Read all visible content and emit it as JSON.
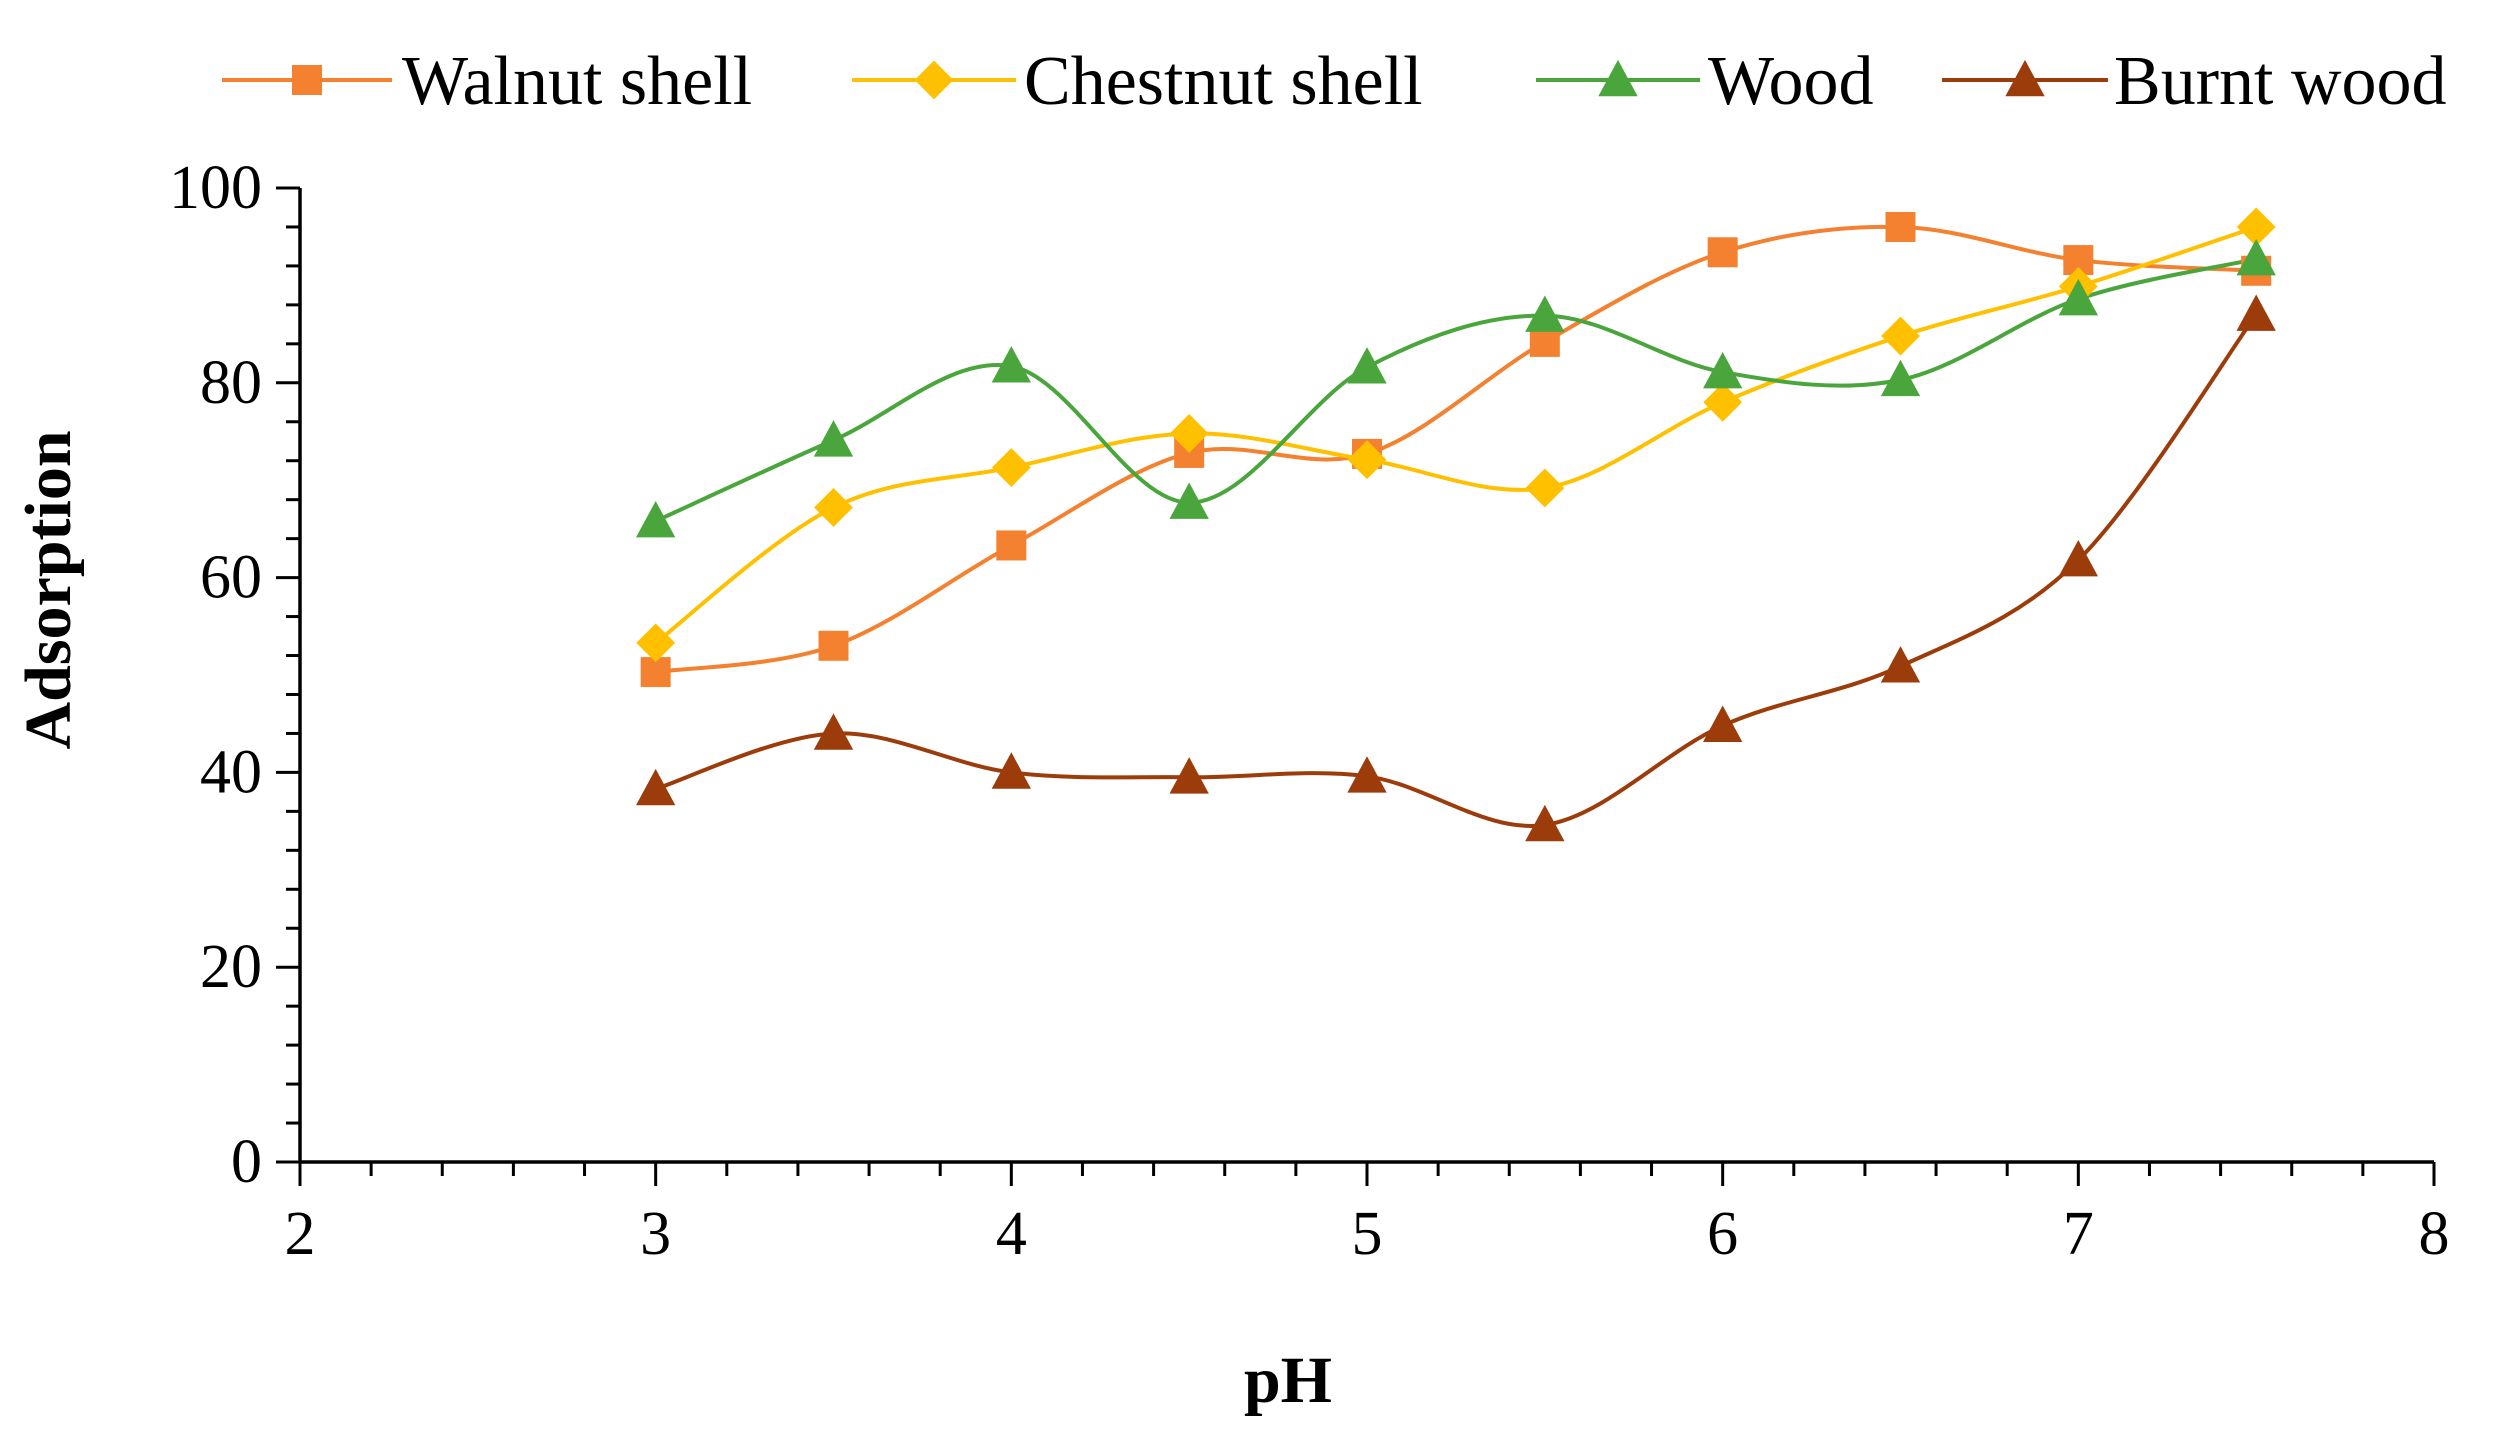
{
  "chart_data": {
    "type": "line",
    "title": "",
    "xlabel": "pH",
    "ylabel": "Adsorption",
    "xlim": [
      2,
      8
    ],
    "ylim": [
      0,
      100
    ],
    "x_ticks": [
      2,
      3,
      4,
      5,
      6,
      7,
      8
    ],
    "y_ticks": [
      0,
      20,
      40,
      60,
      80,
      100
    ],
    "grid": false,
    "legend_position": "top",
    "x": [
      3,
      3.5,
      4,
      4.5,
      5,
      5.5,
      6,
      6.5,
      7,
      7.5
    ],
    "series": [
      {
        "name": "Walnut shell",
        "color": "#f4812f",
        "marker": "square",
        "values": [
          50.3,
          53.0,
          63.3,
          72.8,
          72.7,
          84.2,
          93.4,
          96.0,
          92.6,
          91.5
        ]
      },
      {
        "name": "Chestnut shell",
        "color": "#ffc000",
        "marker": "diamond",
        "values": [
          53.3,
          67.2,
          71.3,
          74.8,
          72.1,
          69.2,
          78.0,
          84.8,
          89.9,
          96.0
        ]
      },
      {
        "name": "Wood",
        "color": "#4aa63c",
        "marker": "triangle",
        "values": [
          65.8,
          74.1,
          81.7,
          67.7,
          81.6,
          86.9,
          81.1,
          80.3,
          88.6,
          92.7
        ]
      },
      {
        "name": "Burnt wood",
        "color": "#9c3c0a",
        "marker": "triangle",
        "values": [
          38.3,
          44.0,
          40.0,
          39.5,
          39.6,
          34.6,
          44.8,
          50.9,
          61.8,
          87.0
        ]
      }
    ]
  }
}
